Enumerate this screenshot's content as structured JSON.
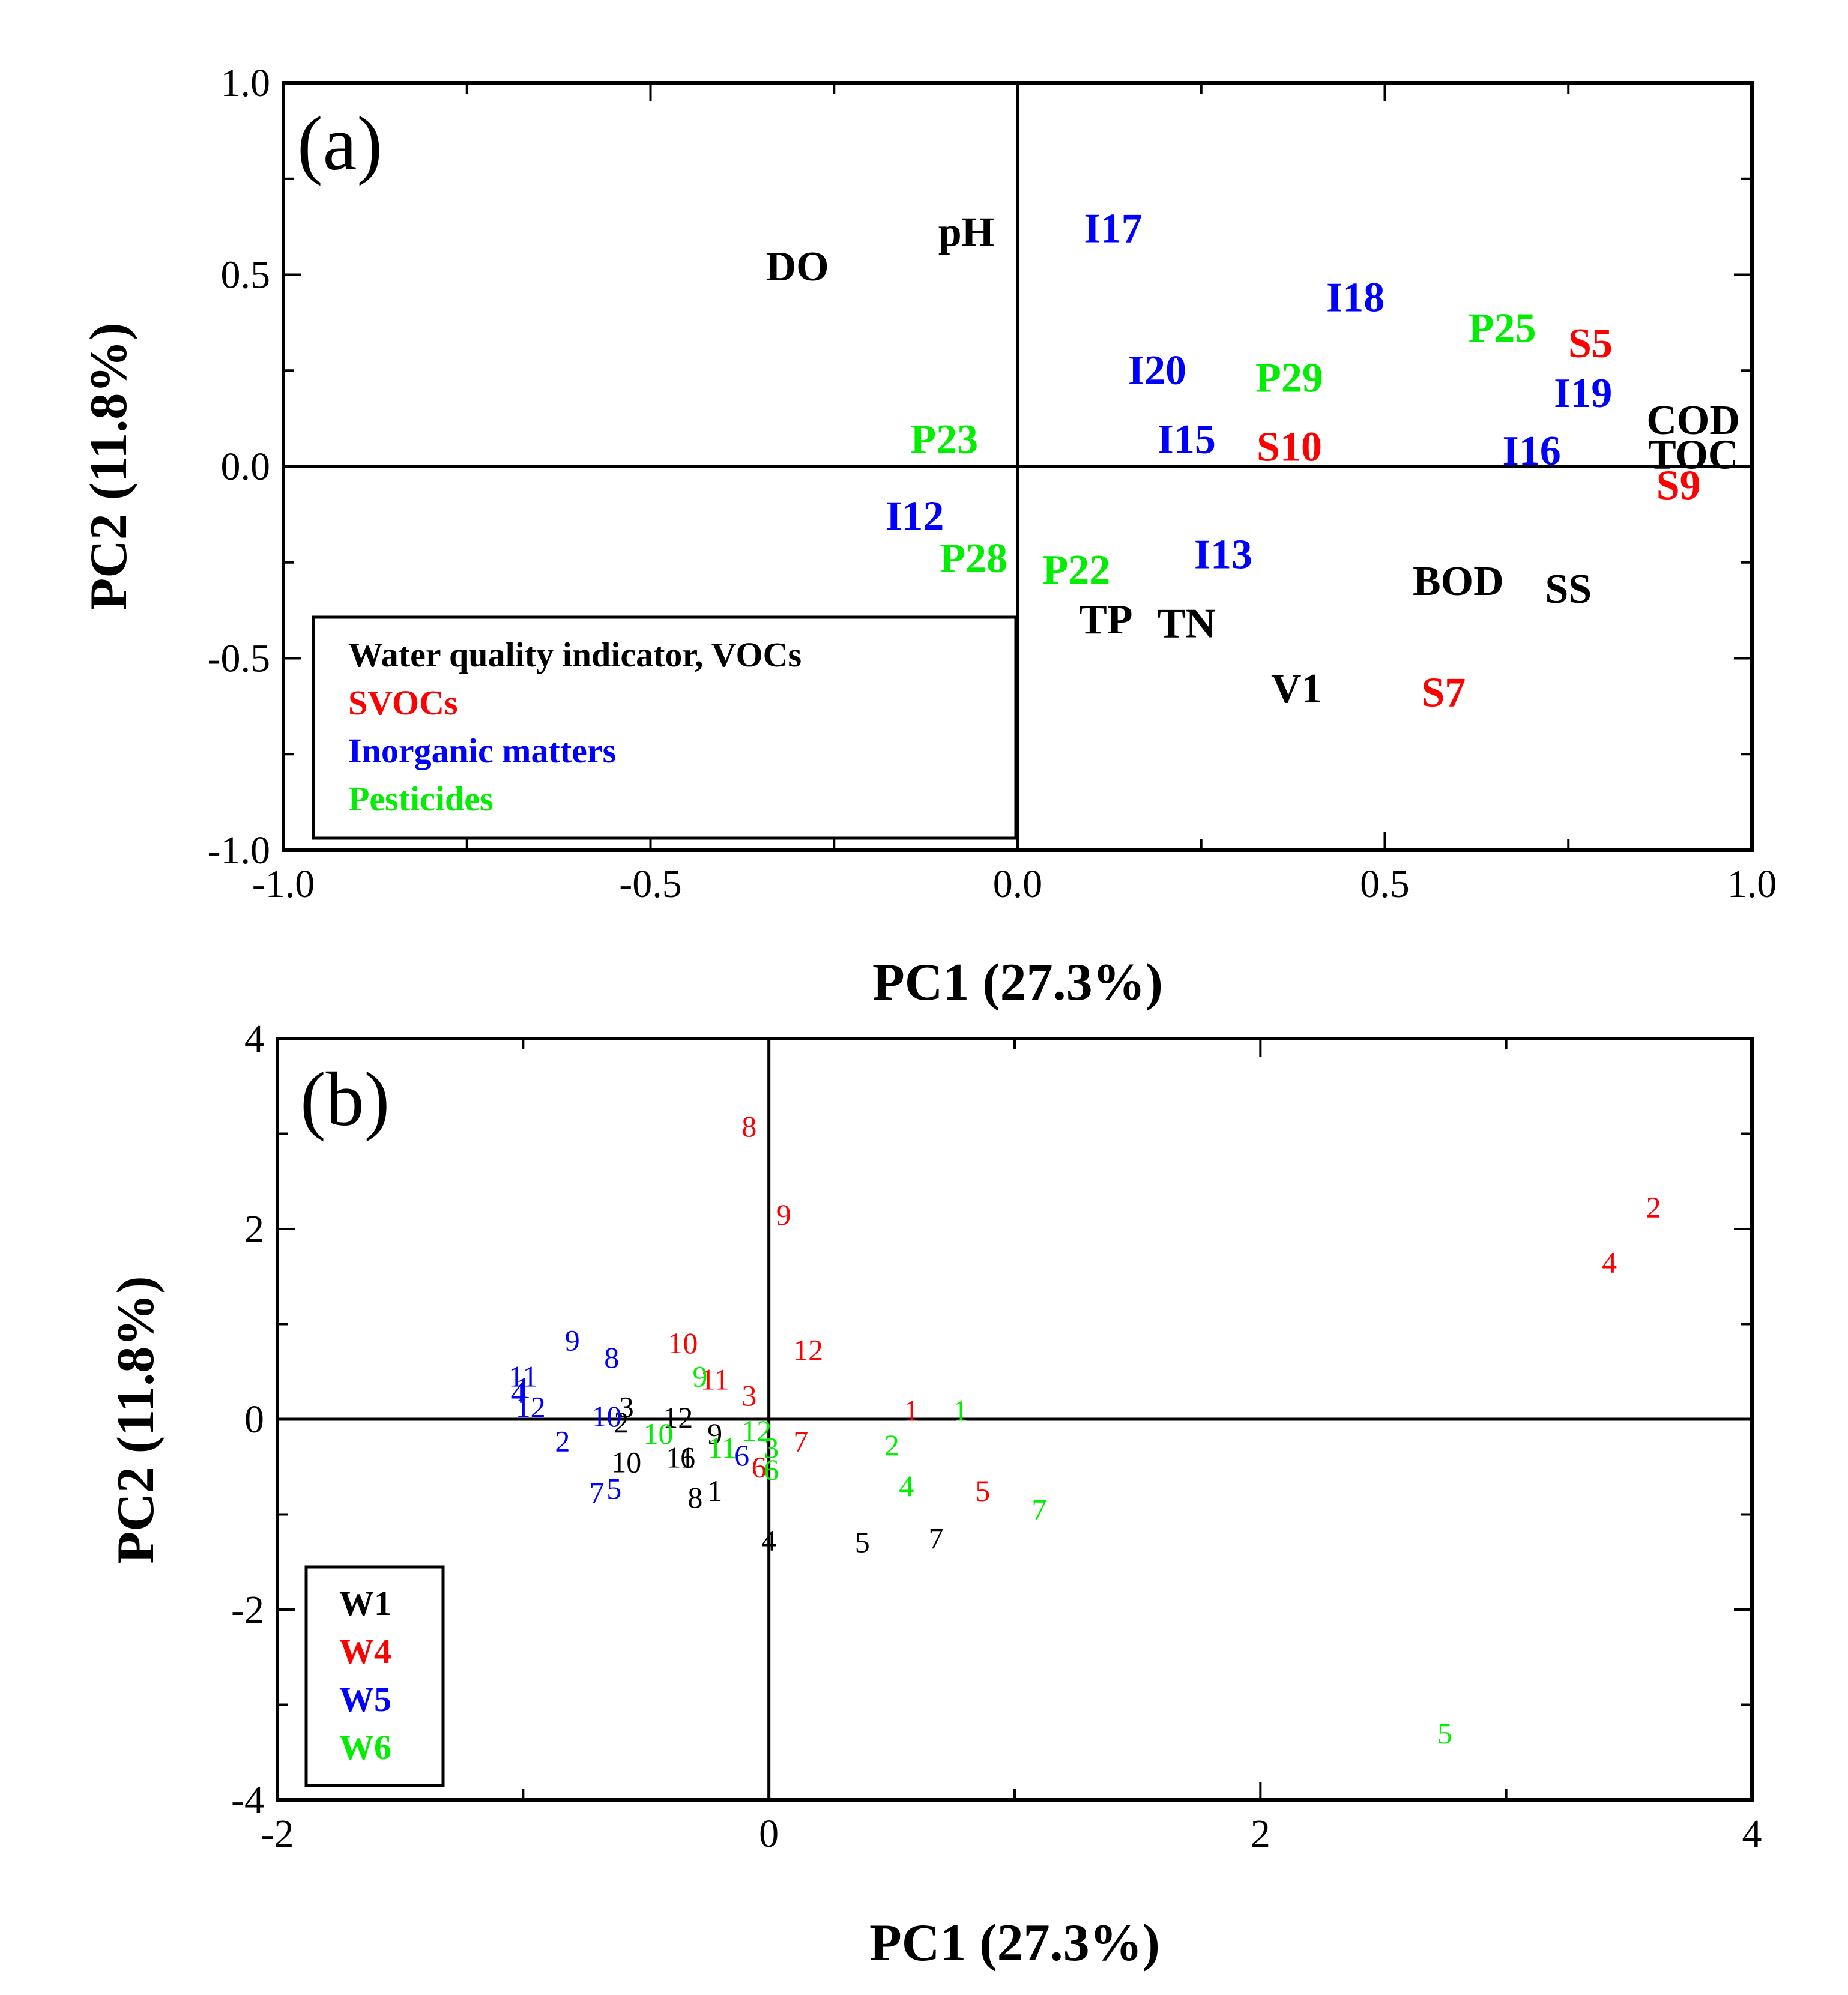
{
  "colors": {
    "black": "#000000",
    "red": "#ff0000",
    "blue": "#0000ff",
    "green": "#00ee00"
  },
  "chart_data": [
    {
      "panel": "(a)",
      "type": "scatter",
      "xlabel": "PC1 (27.3%)",
      "ylabel": "PC2 (11.8%)",
      "xlim": [
        -1.0,
        1.0
      ],
      "ylim": [
        -1.0,
        1.0
      ],
      "xticks": [
        "-1.0",
        "-0.5",
        "0.0",
        "0.5",
        "1.0"
      ],
      "yticks": [
        "1.0",
        "0.5",
        "0.0",
        "-0.5",
        "-1.0"
      ],
      "legend_position": "bottom-left",
      "legend": [
        {
          "label": "Water quality indicator, VOCs",
          "color": "#000000"
        },
        {
          "label": "SVOCs",
          "color": "#ff0000"
        },
        {
          "label": "Inorganic matters",
          "color": "#0000ff"
        },
        {
          "label": "Pesticides",
          "color": "#00ee00"
        }
      ],
      "points": [
        {
          "label": "DO",
          "x": -0.3,
          "y": 0.52,
          "color": "#000000"
        },
        {
          "label": "pH",
          "x": -0.07,
          "y": 0.61,
          "color": "#000000"
        },
        {
          "label": "I17",
          "x": 0.13,
          "y": 0.62,
          "color": "#0000ff"
        },
        {
          "label": "I18",
          "x": 0.46,
          "y": 0.44,
          "color": "#0000ff"
        },
        {
          "label": "P25",
          "x": 0.66,
          "y": 0.36,
          "color": "#00ee00"
        },
        {
          "label": "S5",
          "x": 0.78,
          "y": 0.32,
          "color": "#ff0000"
        },
        {
          "label": "I20",
          "x": 0.19,
          "y": 0.25,
          "color": "#0000ff"
        },
        {
          "label": "P29",
          "x": 0.37,
          "y": 0.23,
          "color": "#00ee00"
        },
        {
          "label": "I19",
          "x": 0.77,
          "y": 0.19,
          "color": "#0000ff"
        },
        {
          "label": "COD",
          "x": 0.92,
          "y": 0.12,
          "color": "#000000"
        },
        {
          "label": "P23",
          "x": -0.1,
          "y": 0.07,
          "color": "#00ee00"
        },
        {
          "label": "I15",
          "x": 0.23,
          "y": 0.07,
          "color": "#0000ff"
        },
        {
          "label": "S10",
          "x": 0.37,
          "y": 0.05,
          "color": "#ff0000"
        },
        {
          "label": "I16",
          "x": 0.7,
          "y": 0.04,
          "color": "#0000ff"
        },
        {
          "label": "TOC",
          "x": 0.92,
          "y": 0.03,
          "color": "#000000"
        },
        {
          "label": "S9",
          "x": 0.9,
          "y": -0.05,
          "color": "#ff0000"
        },
        {
          "label": "I12",
          "x": -0.14,
          "y": -0.13,
          "color": "#0000ff"
        },
        {
          "label": "P28",
          "x": -0.06,
          "y": -0.24,
          "color": "#00ee00"
        },
        {
          "label": "P22",
          "x": 0.08,
          "y": -0.27,
          "color": "#00ee00"
        },
        {
          "label": "I13",
          "x": 0.28,
          "y": -0.23,
          "color": "#0000ff"
        },
        {
          "label": "BOD",
          "x": 0.6,
          "y": -0.3,
          "color": "#000000"
        },
        {
          "label": "SS",
          "x": 0.75,
          "y": -0.32,
          "color": "#000000"
        },
        {
          "label": "TP",
          "x": 0.12,
          "y": -0.4,
          "color": "#000000"
        },
        {
          "label": "TN",
          "x": 0.23,
          "y": -0.41,
          "color": "#000000"
        },
        {
          "label": "V1",
          "x": 0.38,
          "y": -0.58,
          "color": "#000000"
        },
        {
          "label": "S7",
          "x": 0.58,
          "y": -0.59,
          "color": "#ff0000"
        }
      ]
    },
    {
      "panel": "(b)",
      "type": "scatter",
      "xlabel": "PC1 (27.3%)",
      "ylabel": "PC2 (11.8%)",
      "xlim": [
        -2,
        4
      ],
      "ylim": [
        -4,
        4
      ],
      "xticks": [
        "-2",
        "0",
        "2",
        "4"
      ],
      "yticks": [
        "4",
        "2",
        "0",
        "-2",
        "-4"
      ],
      "legend_position": "bottom-left",
      "legend": [
        {
          "label": "W1",
          "color": "#000000"
        },
        {
          "label": "W4",
          "color": "#ff0000"
        },
        {
          "label": "W5",
          "color": "#0000ff"
        },
        {
          "label": "W6",
          "color": "#00ee00"
        }
      ],
      "points": [
        {
          "label": "1",
          "x": -0.22,
          "y": -0.75,
          "series": "W1"
        },
        {
          "label": "2",
          "x": -0.6,
          "y": -0.03,
          "series": "W1"
        },
        {
          "label": "3",
          "x": -0.58,
          "y": 0.13,
          "series": "W1"
        },
        {
          "label": "4",
          "x": 0.0,
          "y": -1.27,
          "series": "W1"
        },
        {
          "label": "5",
          "x": 0.38,
          "y": -1.29,
          "series": "W1"
        },
        {
          "label": "6",
          "x": -0.33,
          "y": -0.4,
          "series": "W1"
        },
        {
          "label": "7",
          "x": 0.68,
          "y": -1.25,
          "series": "W1"
        },
        {
          "label": "8",
          "x": -0.3,
          "y": -0.82,
          "series": "W1"
        },
        {
          "label": "9",
          "x": -0.22,
          "y": -0.15,
          "series": "W1"
        },
        {
          "label": "10",
          "x": -0.58,
          "y": -0.45,
          "series": "W1"
        },
        {
          "label": "11",
          "x": -0.36,
          "y": -0.4,
          "series": "W1"
        },
        {
          "label": "12",
          "x": -0.37,
          "y": 0.02,
          "series": "W1"
        },
        {
          "label": "1",
          "x": 0.58,
          "y": 0.09,
          "series": "W4"
        },
        {
          "label": "2",
          "x": 3.6,
          "y": 2.23,
          "series": "W4"
        },
        {
          "label": "3",
          "x": -0.08,
          "y": 0.25,
          "series": "W4"
        },
        {
          "label": "4",
          "x": 3.42,
          "y": 1.65,
          "series": "W4"
        },
        {
          "label": "5",
          "x": 0.87,
          "y": -0.75,
          "series": "W4"
        },
        {
          "label": "6",
          "x": -0.04,
          "y": -0.5,
          "series": "W4"
        },
        {
          "label": "7",
          "x": 0.13,
          "y": -0.23,
          "series": "W4"
        },
        {
          "label": "8",
          "x": -0.08,
          "y": 3.08,
          "series": "W4"
        },
        {
          "label": "9",
          "x": 0.06,
          "y": 2.15,
          "series": "W4"
        },
        {
          "label": "10",
          "x": -0.35,
          "y": 0.8,
          "series": "W4"
        },
        {
          "label": "11",
          "x": -0.22,
          "y": 0.42,
          "series": "W4"
        },
        {
          "label": "12",
          "x": 0.16,
          "y": 0.73,
          "series": "W4"
        },
        {
          "label": "1",
          "x": -1.0,
          "y": 0.33,
          "series": "W5"
        },
        {
          "label": "2",
          "x": -0.84,
          "y": -0.23,
          "series": "W5"
        },
        {
          "label": "4",
          "x": -1.02,
          "y": 0.28,
          "series": "W5"
        },
        {
          "label": "5",
          "x": -0.63,
          "y": -0.73,
          "series": "W5"
        },
        {
          "label": "6",
          "x": -0.11,
          "y": -0.38,
          "series": "W5"
        },
        {
          "label": "7",
          "x": -0.7,
          "y": -0.77,
          "series": "W5"
        },
        {
          "label": "8",
          "x": -0.64,
          "y": 0.65,
          "series": "W5"
        },
        {
          "label": "9",
          "x": -0.8,
          "y": 0.83,
          "series": "W5"
        },
        {
          "label": "10",
          "x": -0.66,
          "y": 0.03,
          "series": "W5"
        },
        {
          "label": "11",
          "x": -1.0,
          "y": 0.45,
          "series": "W5"
        },
        {
          "label": "12",
          "x": -0.97,
          "y": 0.13,
          "series": "W5"
        },
        {
          "label": "1",
          "x": 0.78,
          "y": 0.09,
          "series": "W6"
        },
        {
          "label": "2",
          "x": 0.5,
          "y": -0.27,
          "series": "W6"
        },
        {
          "label": "3",
          "x": 0.01,
          "y": -0.3,
          "series": "W6"
        },
        {
          "label": "4",
          "x": 0.56,
          "y": -0.7,
          "series": "W6"
        },
        {
          "label": "5",
          "x": 2.75,
          "y": -3.3,
          "series": "W6"
        },
        {
          "label": "6",
          "x": 0.01,
          "y": -0.53,
          "series": "W6"
        },
        {
          "label": "7",
          "x": 1.1,
          "y": -0.95,
          "series": "W6"
        },
        {
          "label": "9",
          "x": -0.28,
          "y": 0.45,
          "series": "W6"
        },
        {
          "label": "10",
          "x": -0.45,
          "y": -0.15,
          "series": "W6"
        },
        {
          "label": "11",
          "x": -0.19,
          "y": -0.3,
          "series": "W6"
        },
        {
          "label": "12",
          "x": -0.05,
          "y": -0.12,
          "series": "W6"
        }
      ]
    }
  ]
}
